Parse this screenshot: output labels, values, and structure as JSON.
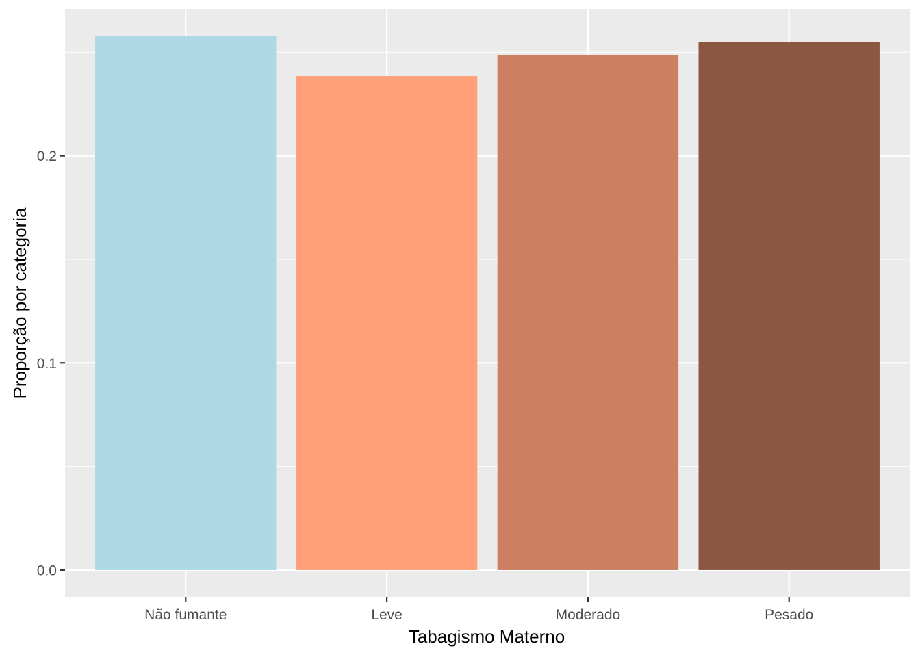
{
  "chart_data": {
    "type": "bar",
    "title": "",
    "xlabel": "Tabagismo Materno",
    "ylabel": "Proporção por categoria",
    "categories": [
      "Não fumante",
      "Leve",
      "Moderado",
      "Pesado"
    ],
    "values": [
      0.258,
      0.2385,
      0.2485,
      0.255
    ],
    "colors": [
      "#ADD8E6",
      "#FFA07A",
      "#CD7F61",
      "#8B5742"
    ],
    "y_ticks": [
      0.0,
      0.1,
      0.2
    ],
    "y_tick_labels": [
      "0.0",
      "0.1",
      "0.2"
    ],
    "ylim": [
      -0.0129,
      0.2709
    ],
    "grid": true,
    "legend": "none",
    "panel_background": "#EBEBEB",
    "grid_color": "#FFFFFF"
  }
}
